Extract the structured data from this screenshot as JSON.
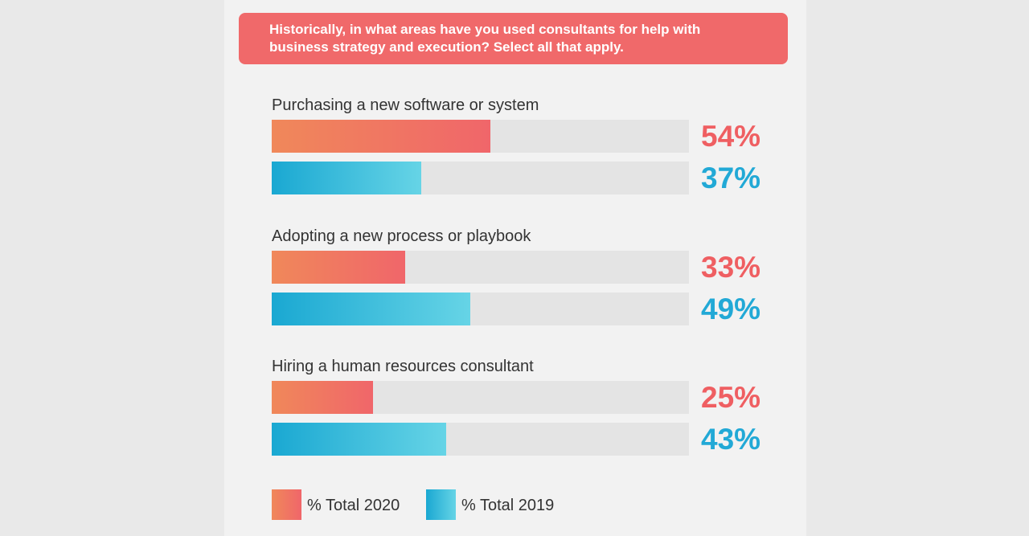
{
  "chart_data": {
    "type": "bar",
    "orientation": "horizontal",
    "title": "Historically, in what areas have you used consultants for help with business strategy and execution? Select all that apply.",
    "categories": [
      "Purchasing a new software or system",
      "Adopting a new process or playbook",
      "Hiring a human resources consultant"
    ],
    "series": [
      {
        "name": "% Total 2020",
        "values": [
          54,
          33,
          25
        ],
        "labels": [
          "54%",
          "33%",
          "25%"
        ],
        "color": "#f0696a"
      },
      {
        "name": "% Total 2019",
        "values": [
          37,
          49,
          43
        ],
        "labels": [
          "37%",
          "49%",
          "43%"
        ],
        "color": "#22a9d6"
      }
    ],
    "xlim": [
      0,
      100
    ],
    "grid": false,
    "legend_position": "bottom-left"
  }
}
